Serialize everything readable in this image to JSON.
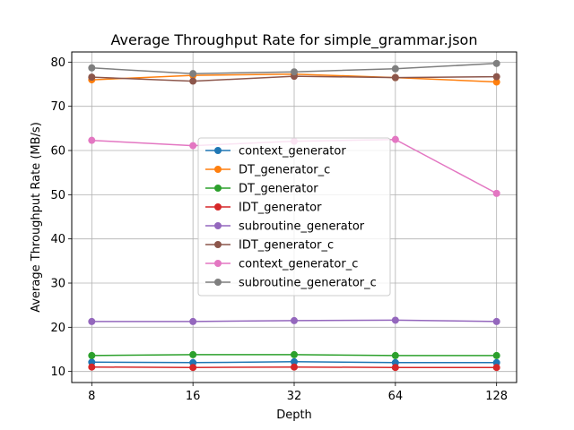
{
  "chart_data": {
    "type": "line",
    "title": "Average Throughput Rate for simple_grammar.json",
    "xlabel": "Depth",
    "ylabel": "Average Throughput Rate (MB/s)",
    "x_scale": "log2",
    "categories": [
      "8",
      "16",
      "32",
      "64",
      "128"
    ],
    "x": [
      8,
      16,
      32,
      64,
      128
    ],
    "ylim": [
      7.5,
      82.3
    ],
    "yticks": [
      10,
      20,
      30,
      40,
      50,
      60,
      70,
      80
    ],
    "grid": true,
    "legend_position": "center",
    "series": [
      {
        "name": "context_generator",
        "color": "#1f77b4",
        "values": [
          12.1,
          12.0,
          12.2,
          12.0,
          12.0
        ]
      },
      {
        "name": "DT_generator_c",
        "color": "#ff7f0e",
        "values": [
          76.0,
          77.0,
          77.3,
          76.5,
          75.5
        ]
      },
      {
        "name": "DT_generator",
        "color": "#2ca02c",
        "values": [
          13.6,
          13.8,
          13.8,
          13.6,
          13.6
        ]
      },
      {
        "name": "IDT_generator",
        "color": "#d62728",
        "values": [
          11.0,
          10.9,
          11.0,
          10.9,
          10.9
        ]
      },
      {
        "name": "subroutine_generator",
        "color": "#9467bd",
        "values": [
          21.3,
          21.3,
          21.5,
          21.6,
          21.3
        ]
      },
      {
        "name": "IDT_generator_c",
        "color": "#8c564b",
        "values": [
          76.6,
          75.7,
          76.8,
          76.5,
          76.7
        ]
      },
      {
        "name": "context_generator_c",
        "color": "#e377c2",
        "values": [
          62.3,
          61.1,
          62.1,
          62.5,
          50.3
        ]
      },
      {
        "name": "subroutine_generator_c",
        "color": "#7f7f7f",
        "values": [
          78.7,
          77.4,
          77.8,
          78.5,
          79.7
        ]
      }
    ]
  }
}
